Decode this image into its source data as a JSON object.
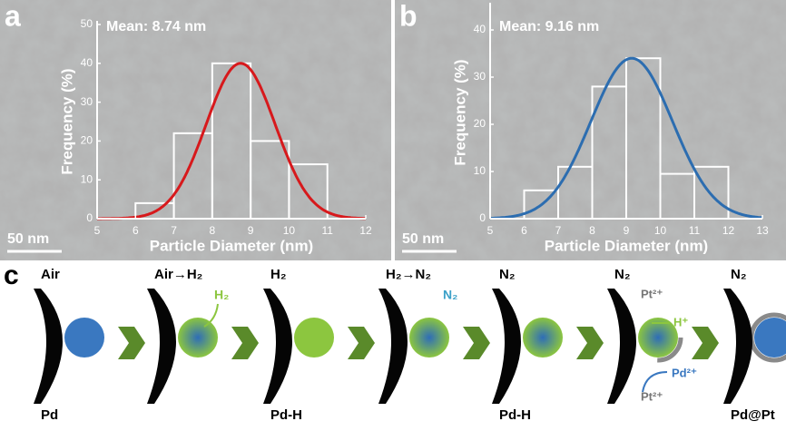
{
  "chart_data": [
    {
      "type": "histogram",
      "panel_label": "a",
      "title": "Mean: 8.74 nm",
      "scale_bar": "50 nm",
      "x_label": "Particle Diameter (nm)",
      "y_label": "Frequency (%)",
      "bins": [
        6,
        7,
        8,
        9,
        10,
        11
      ],
      "values": [
        4,
        22,
        40,
        20,
        14
      ],
      "color": "#ffffff",
      "fit": {
        "mean": 8.74,
        "sigma": 0.9,
        "peak": 40,
        "color": "#d7191c"
      },
      "xlim": [
        5,
        12
      ],
      "ylim": [
        0,
        50
      ],
      "xticks": [
        5,
        6,
        7,
        8,
        9,
        10,
        11,
        12
      ],
      "yticks": [
        0,
        10,
        20,
        30,
        40,
        50
      ]
    },
    {
      "type": "histogram",
      "panel_label": "b",
      "title": "Mean: 9.16 nm",
      "scale_bar": "50 nm",
      "x_label": "Particle Diameter (nm)",
      "y_label": "Frequency (%)",
      "bins": [
        6,
        7,
        8,
        9,
        10,
        11,
        12
      ],
      "values": [
        6,
        11,
        28,
        34,
        9.5,
        11
      ],
      "color": "#ffffff",
      "fit": {
        "mean": 9.16,
        "sigma": 1.2,
        "peak": 34,
        "color": "#2c6db0"
      },
      "xlim": [
        5,
        13
      ],
      "ylim": [
        0,
        45
      ],
      "xticks": [
        5,
        6,
        7,
        8,
        9,
        10,
        11,
        12,
        13
      ],
      "yticks": [
        0,
        10,
        20,
        30,
        40
      ]
    }
  ],
  "scheme": {
    "panel_label": "c",
    "steps": [
      {
        "gas": "Air",
        "label": "Pd"
      },
      {
        "gas": "Air→H₂"
      },
      {
        "gas": "H₂",
        "label": "Pd-H"
      },
      {
        "gas": "H₂→N₂"
      },
      {
        "gas": "N₂",
        "label": "Pd-H"
      },
      {
        "gas": "N₂"
      },
      {
        "gas": "N₂",
        "label": "Pd@Pt"
      }
    ],
    "annotations": {
      "h2": "H₂",
      "n2": "N₂",
      "pt_top": "Pt²⁺",
      "h_plus": "H⁺",
      "pd": "Pd²⁺",
      "pt_bottom": "Pt²⁺"
    }
  }
}
